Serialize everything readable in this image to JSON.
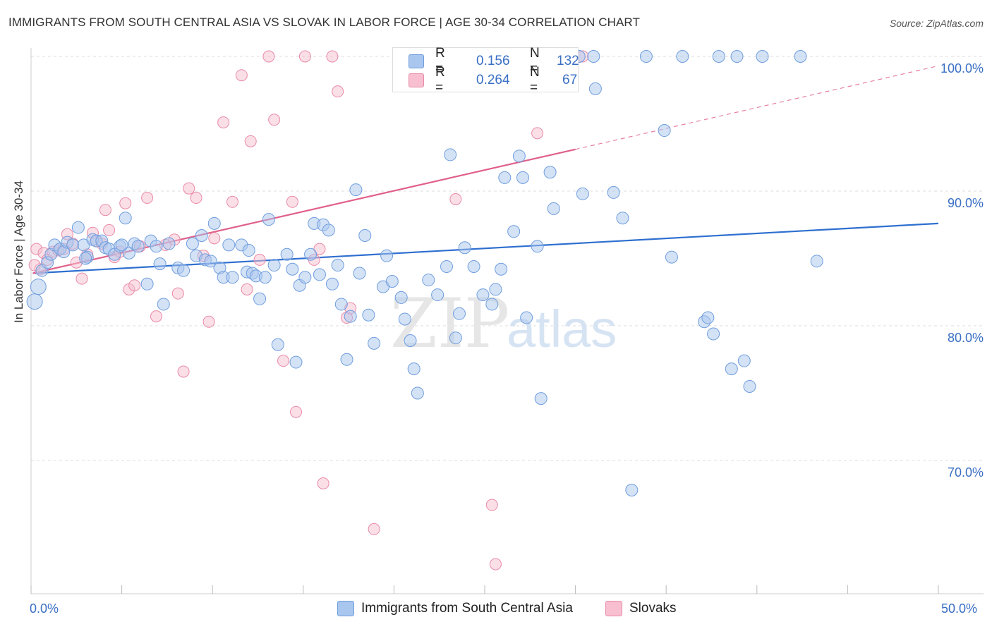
{
  "header": {
    "title": "IMMIGRANTS FROM SOUTH CENTRAL ASIA VS SLOVAK IN LABOR FORCE | AGE 30-34 CORRELATION CHART",
    "source": "Source: ZipAtlas.com"
  },
  "legend": {
    "r_label": "R =",
    "n_label": "N =",
    "series_a": {
      "r": "0.156",
      "n": "132"
    },
    "series_b": {
      "r": "0.264",
      "n": "67"
    }
  },
  "bottom_legend": {
    "series_a": "Immigrants from South Central Asia",
    "series_b": "Slovaks"
  },
  "axis": {
    "ylabel": "In Labor Force | Age 30-34",
    "x_min_label": "0.0%",
    "x_max_label": "50.0%",
    "y_ticks": [
      "100.0%",
      "90.0%",
      "80.0%",
      "70.0%"
    ]
  },
  "watermark": {
    "zip": "ZIP",
    "atlas": "atlas"
  },
  "colors": {
    "blue_fill": "#a9c6ee",
    "blue_stroke": "#6f9ede",
    "blue_line": "#2e6fd0",
    "pink_fill": "#f7bfd0",
    "pink_stroke": "#e98aa8",
    "pink_line": "#e0608a",
    "tick_label": "#3a6fc4",
    "grid": "#dddddd"
  },
  "chart_data": {
    "type": "scatter",
    "title": "IMMIGRANTS FROM SOUTH CENTRAL ASIA VS SLOVAK IN LABOR FORCE | AGE 30-34 CORRELATION CHART",
    "xlabel": "",
    "ylabel": "In Labor Force | Age 30-34",
    "xlim": [
      0,
      50
    ],
    "ylim": [
      60.5,
      101.5
    ],
    "y_ticks": [
      70,
      80,
      90,
      100
    ],
    "grid": true,
    "legend_position": "top-center",
    "series": [
      {
        "name": "Immigrants from South Central Asia",
        "color": "blue",
        "trend": {
          "x": [
            0.1,
            50
          ],
          "y": [
            83.9,
            87.6
          ]
        },
        "points": [
          [
            0.2,
            81.8
          ],
          [
            0.4,
            82.9
          ],
          [
            0.6,
            84.1
          ],
          [
            0.9,
            84.7
          ],
          [
            1.1,
            85.3
          ],
          [
            1.3,
            86.0
          ],
          [
            1.6,
            85.7
          ],
          [
            1.8,
            85.5
          ],
          [
            2.0,
            86.2
          ],
          [
            2.3,
            86.0
          ],
          [
            2.6,
            87.3
          ],
          [
            2.9,
            86.0
          ],
          [
            3.1,
            85.1
          ],
          [
            3.4,
            86.4
          ],
          [
            3.6,
            86.3
          ],
          [
            3.9,
            86.3
          ],
          [
            4.1,
            85.8
          ],
          [
            4.3,
            85.7
          ],
          [
            4.6,
            85.3
          ],
          [
            4.9,
            85.9
          ],
          [
            5.2,
            88.0
          ],
          [
            5.4,
            85.4
          ],
          [
            5.7,
            86.1
          ],
          [
            5.9,
            85.9
          ],
          [
            6.4,
            83.1
          ],
          [
            6.6,
            86.3
          ],
          [
            6.9,
            85.9
          ],
          [
            7.1,
            84.6
          ],
          [
            7.3,
            81.6
          ],
          [
            7.6,
            86.1
          ],
          [
            8.1,
            84.3
          ],
          [
            8.4,
            84.1
          ],
          [
            8.9,
            86.1
          ],
          [
            9.1,
            85.2
          ],
          [
            9.4,
            86.7
          ],
          [
            9.6,
            84.9
          ],
          [
            9.9,
            84.8
          ],
          [
            10.1,
            87.6
          ],
          [
            10.4,
            84.3
          ],
          [
            10.6,
            83.6
          ],
          [
            10.9,
            86.0
          ],
          [
            11.1,
            83.6
          ],
          [
            11.6,
            86.0
          ],
          [
            11.9,
            84.0
          ],
          [
            12.2,
            83.9
          ],
          [
            12.4,
            83.7
          ],
          [
            12.6,
            82.0
          ],
          [
            12.9,
            83.6
          ],
          [
            13.1,
            87.9
          ],
          [
            13.4,
            84.5
          ],
          [
            13.6,
            78.6
          ],
          [
            14.1,
            85.3
          ],
          [
            14.4,
            84.2
          ],
          [
            14.6,
            77.3
          ],
          [
            14.8,
            83.0
          ],
          [
            15.1,
            83.6
          ],
          [
            15.4,
            85.3
          ],
          [
            15.6,
            87.6
          ],
          [
            15.9,
            83.8
          ],
          [
            16.1,
            87.5
          ],
          [
            16.4,
            87.1
          ],
          [
            16.6,
            83.1
          ],
          [
            16.9,
            84.5
          ],
          [
            17.1,
            81.6
          ],
          [
            17.4,
            77.5
          ],
          [
            17.6,
            80.7
          ],
          [
            17.9,
            90.1
          ],
          [
            18.1,
            83.9
          ],
          [
            18.4,
            86.7
          ],
          [
            18.6,
            80.8
          ],
          [
            18.9,
            78.7
          ],
          [
            19.4,
            82.9
          ],
          [
            19.6,
            85.2
          ],
          [
            19.9,
            83.3
          ],
          [
            20.4,
            82.1
          ],
          [
            20.6,
            80.5
          ],
          [
            20.9,
            78.9
          ],
          [
            21.1,
            76.8
          ],
          [
            21.3,
            75.0
          ],
          [
            21.9,
            83.4
          ],
          [
            22.4,
            82.3
          ],
          [
            22.9,
            84.4
          ],
          [
            23.1,
            92.7
          ],
          [
            23.4,
            79.1
          ],
          [
            23.6,
            80.9
          ],
          [
            23.9,
            85.8
          ],
          [
            24.4,
            84.4
          ],
          [
            24.9,
            82.3
          ],
          [
            25.4,
            81.6
          ],
          [
            25.6,
            82.7
          ],
          [
            25.9,
            84.2
          ],
          [
            26.1,
            91.0
          ],
          [
            26.6,
            87.0
          ],
          [
            26.9,
            92.6
          ],
          [
            27.1,
            91.0
          ],
          [
            27.3,
            80.6
          ],
          [
            27.9,
            85.9
          ],
          [
            28.1,
            74.6
          ],
          [
            28.6,
            91.4
          ],
          [
            28.8,
            88.7
          ],
          [
            30.4,
            89.8
          ],
          [
            31.1,
            97.6
          ],
          [
            32.1,
            89.9
          ],
          [
            32.6,
            88.0
          ],
          [
            33.1,
            67.8
          ],
          [
            33.9,
            100.0
          ],
          [
            34.9,
            94.5
          ],
          [
            35.3,
            85.1
          ],
          [
            35.9,
            100.0
          ],
          [
            37.1,
            80.3
          ],
          [
            37.3,
            80.6
          ],
          [
            37.6,
            79.4
          ],
          [
            37.9,
            100.0
          ],
          [
            38.6,
            76.8
          ],
          [
            38.9,
            100.0
          ],
          [
            39.3,
            77.4
          ],
          [
            39.6,
            75.5
          ],
          [
            40.3,
            100.0
          ],
          [
            42.4,
            100.0
          ],
          [
            43.3,
            84.8
          ],
          [
            21.6,
            100.0
          ],
          [
            22.1,
            100.0
          ],
          [
            23.8,
            100.0
          ],
          [
            25.5,
            100.0
          ],
          [
            26.8,
            100.0
          ],
          [
            28.4,
            100.0
          ],
          [
            29.3,
            100.0
          ],
          [
            30.2,
            100.0
          ],
          [
            31.0,
            100.0
          ],
          [
            3.0,
            85.0
          ],
          [
            5.0,
            86.0
          ],
          [
            12.0,
            85.6
          ]
        ]
      },
      {
        "name": "Slovaks",
        "color": "pink",
        "trend": {
          "x": [
            0.1,
            30
          ],
          "y": [
            83.9,
            93.1
          ]
        },
        "trend_extension": {
          "x": [
            30,
            50
          ],
          "y": [
            93.1,
            99.3
          ]
        },
        "points": [
          [
            0.3,
            85.7
          ],
          [
            0.5,
            84.2
          ],
          [
            0.7,
            85.4
          ],
          [
            0.9,
            84.9
          ],
          [
            1.2,
            85.5
          ],
          [
            1.5,
            85.6
          ],
          [
            1.8,
            85.7
          ],
          [
            2.0,
            86.8
          ],
          [
            2.3,
            86.1
          ],
          [
            2.5,
            84.7
          ],
          [
            2.8,
            83.5
          ],
          [
            3.1,
            85.3
          ],
          [
            3.4,
            86.9
          ],
          [
            3.6,
            86.3
          ],
          [
            3.9,
            86.1
          ],
          [
            4.1,
            88.6
          ],
          [
            4.3,
            87.1
          ],
          [
            4.6,
            85.1
          ],
          [
            4.9,
            85.5
          ],
          [
            5.2,
            89.1
          ],
          [
            5.4,
            82.7
          ],
          [
            5.7,
            83.0
          ],
          [
            6.0,
            85.9
          ],
          [
            6.4,
            89.5
          ],
          [
            6.9,
            80.7
          ],
          [
            7.4,
            86.0
          ],
          [
            7.9,
            86.4
          ],
          [
            8.1,
            82.4
          ],
          [
            8.4,
            76.6
          ],
          [
            8.7,
            90.2
          ],
          [
            9.1,
            89.5
          ],
          [
            9.5,
            85.2
          ],
          [
            9.8,
            80.3
          ],
          [
            10.1,
            86.5
          ],
          [
            10.6,
            95.1
          ],
          [
            11.1,
            89.2
          ],
          [
            11.6,
            98.6
          ],
          [
            11.9,
            82.7
          ],
          [
            12.1,
            93.7
          ],
          [
            12.6,
            84.9
          ],
          [
            13.1,
            100.0
          ],
          [
            13.4,
            95.3
          ],
          [
            13.9,
            77.4
          ],
          [
            14.4,
            89.2
          ],
          [
            14.6,
            73.6
          ],
          [
            15.1,
            100.0
          ],
          [
            15.6,
            84.9
          ],
          [
            15.9,
            85.7
          ],
          [
            16.1,
            68.3
          ],
          [
            16.6,
            100.0
          ],
          [
            16.9,
            97.4
          ],
          [
            17.4,
            80.6
          ],
          [
            17.6,
            81.3
          ],
          [
            18.9,
            64.9
          ],
          [
            20.4,
            100.0
          ],
          [
            21.9,
            100.0
          ],
          [
            22.4,
            100.0
          ],
          [
            23.4,
            89.4
          ],
          [
            24.4,
            100.0
          ],
          [
            25.4,
            66.7
          ],
          [
            25.6,
            62.3
          ],
          [
            26.6,
            100.0
          ],
          [
            27.9,
            94.3
          ],
          [
            29.1,
            100.0
          ],
          [
            29.4,
            100.0
          ],
          [
            30.4,
            100.0
          ],
          [
            0.2,
            84.5
          ]
        ]
      }
    ]
  }
}
